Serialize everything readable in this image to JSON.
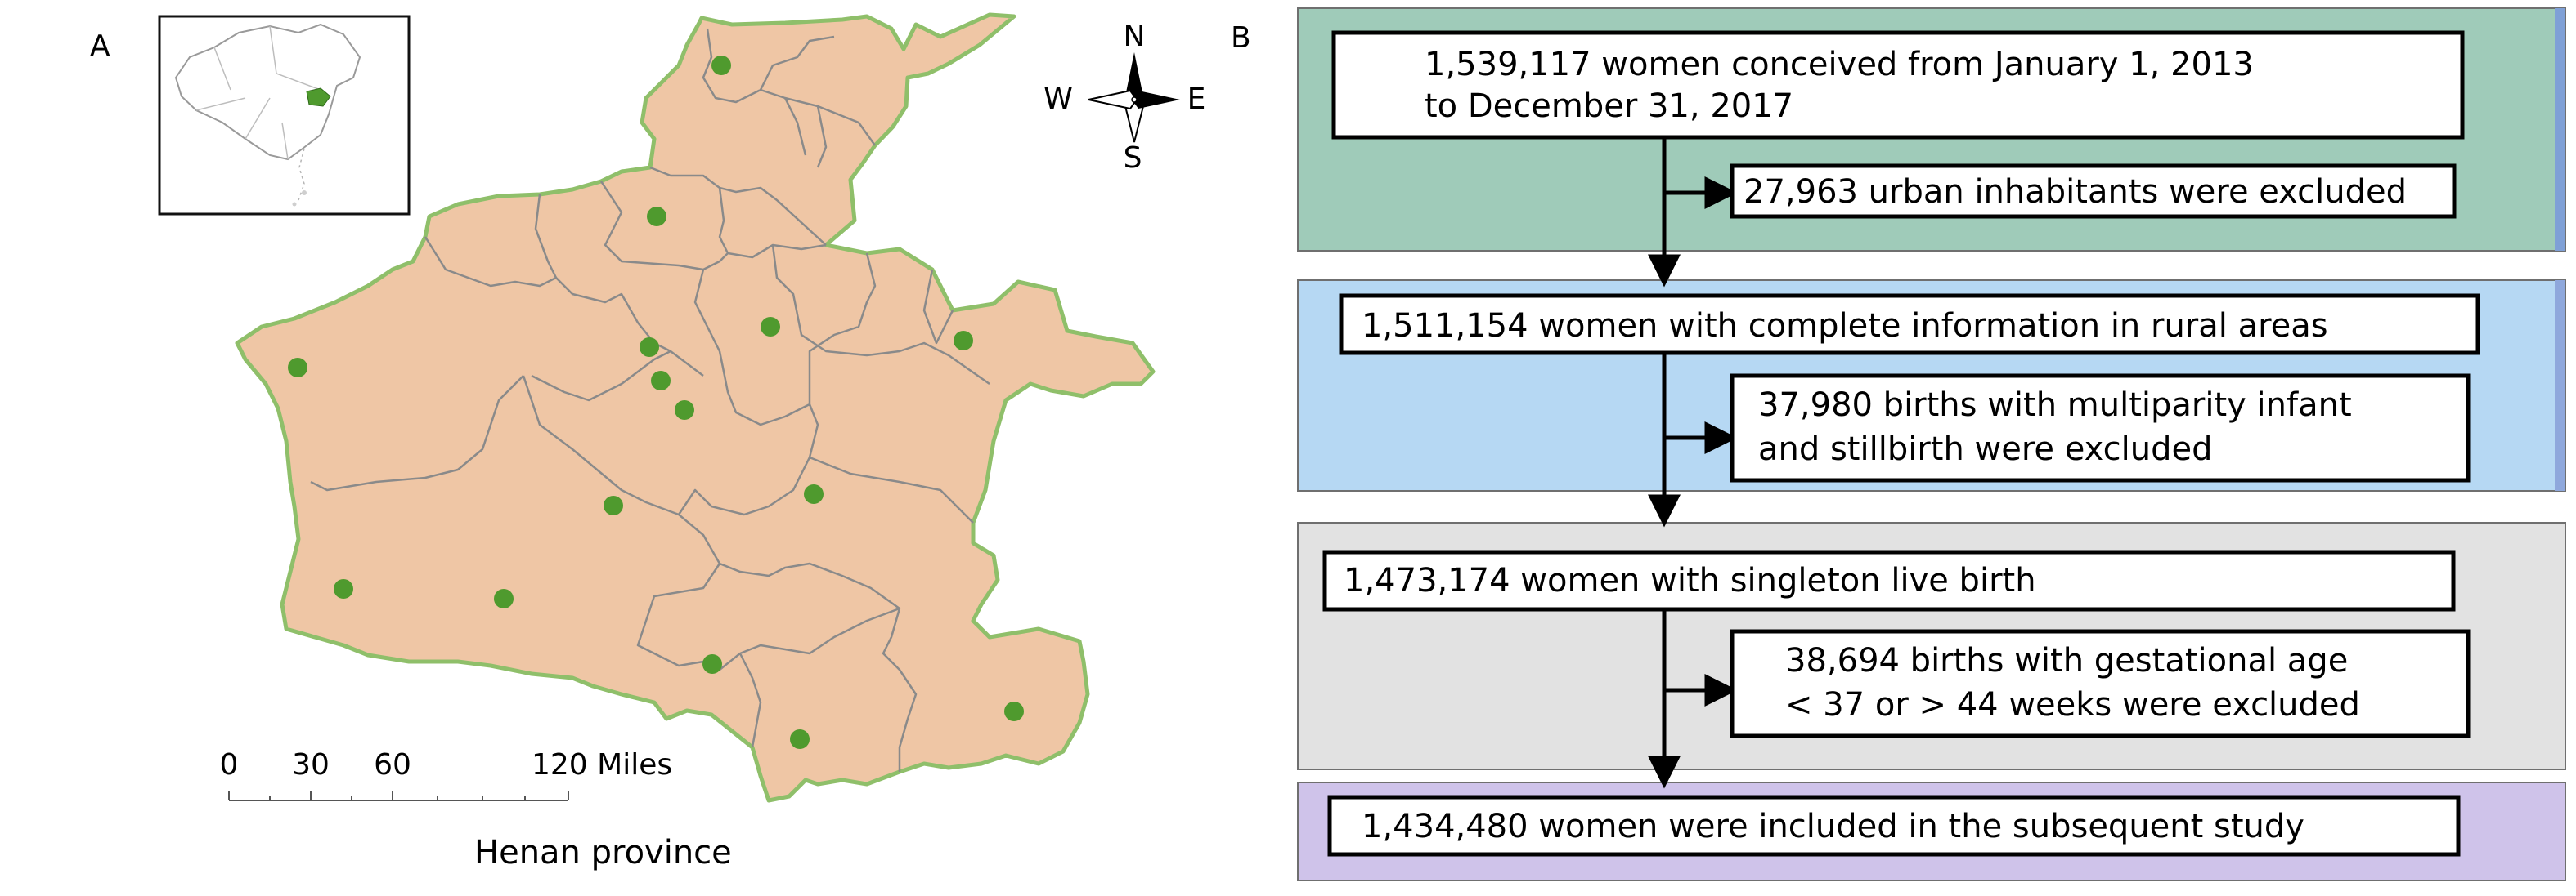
{
  "panels": {
    "map": {
      "label": "A",
      "caption": "Henan province",
      "scale": {
        "ticks": [
          "0",
          "30",
          "60"
        ],
        "end_label": "120 Miles"
      },
      "compass": {
        "n": "N",
        "s": "S",
        "e": "E",
        "w": "W"
      },
      "colors": {
        "province": "#efc6a5",
        "border": "#8a8a8a",
        "site": "#4f9a2e",
        "inset_highlight": "#4f9a2e"
      }
    },
    "flow": {
      "label": "B",
      "steps": [
        {
          "lines": [
            "1,539,117 women conceived from January 1, 2013",
            "to December 31, 2017"
          ]
        },
        {
          "lines": [
            "27,963 urban inhabitants were excluded"
          ]
        },
        {
          "lines": [
            "1,511,154 women with complete information in rural areas"
          ]
        },
        {
          "lines": [
            "37,980 births with multiparity infant",
            "and stillbirth were excluded"
          ]
        },
        {
          "lines": [
            "1,473,174 women with singleton live birth"
          ]
        },
        {
          "lines": [
            "38,694 births with gestational age",
            "< 37 or > 44 weeks were excluded"
          ]
        },
        {
          "lines": [
            "1,434,480 women were included in the subsequent study"
          ]
        }
      ],
      "colors": {
        "panel_1": "#9fcbb9",
        "panel_2": "#b6d8f3",
        "panel_3": "#e2e2e2",
        "panel_4": "#cfc3ea",
        "accent_1": "#7fa0d6",
        "accent_2": "#8fa8dc"
      }
    }
  }
}
